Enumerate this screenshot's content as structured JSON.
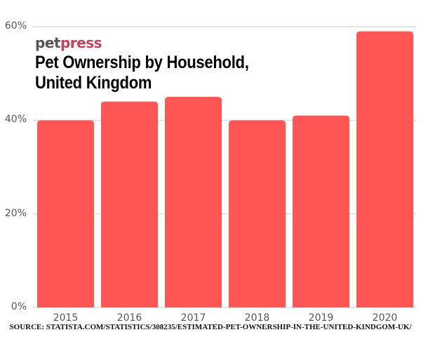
{
  "brand": {
    "part1": "pet",
    "part2": "press"
  },
  "source": "SOURCE: STATISTA.COM/STATISTICS/308235/ESTIMATED-PET-OWNERSHIP-IN-THE-UNITED-KINDGOM-UK/",
  "chart_data": {
    "type": "bar",
    "title": "Pet Ownership by Household, United Kingdom",
    "categories": [
      "2015",
      "2016",
      "2017",
      "2018",
      "2019",
      "2020"
    ],
    "values": [
      40,
      44,
      45,
      40,
      41,
      59
    ],
    "unit": "%",
    "ylim": [
      0,
      60
    ],
    "yticks": [
      "0%",
      "20%",
      "40%",
      "60%"
    ],
    "ytick_values": [
      0,
      20,
      40,
      60
    ],
    "grid": true,
    "bar_color": "#ff5555",
    "xlabel": "",
    "ylabel": ""
  }
}
